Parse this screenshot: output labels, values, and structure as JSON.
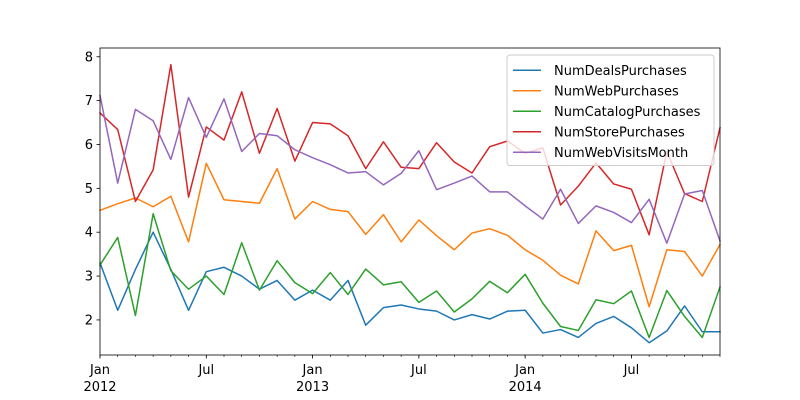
{
  "chart_data": {
    "type": "line",
    "title": "",
    "xlabel": "",
    "ylabel": "",
    "x_start": "2012-01",
    "x_end": "2014-12",
    "ylim": [
      1.2,
      8.2
    ],
    "y_ticks": [
      2,
      3,
      4,
      5,
      6,
      7,
      8
    ],
    "x_major_ticks": [
      {
        "month": "2012-01",
        "label": "Jan",
        "sublabel": "2012"
      },
      {
        "month": "2012-07",
        "label": "Jul",
        "sublabel": ""
      },
      {
        "month": "2013-01",
        "label": "Jan",
        "sublabel": "2013"
      },
      {
        "month": "2013-07",
        "label": "Jul",
        "sublabel": ""
      },
      {
        "month": "2014-01",
        "label": "Jan",
        "sublabel": "2014"
      },
      {
        "month": "2014-07",
        "label": "Jul",
        "sublabel": ""
      }
    ],
    "legend_position": "top-right",
    "grid": false,
    "series": [
      {
        "name": "NumDealsPurchases",
        "color": "#1f77b4",
        "values": [
          3.3,
          2.22,
          3.15,
          4.0,
          3.15,
          2.22,
          3.1,
          3.2,
          3.0,
          2.7,
          2.9,
          2.45,
          2.68,
          2.45,
          2.9,
          1.88,
          2.28,
          2.34,
          2.25,
          2.2,
          2.0,
          2.12,
          2.02,
          2.2,
          2.22,
          1.7,
          1.78,
          1.6,
          1.92,
          2.08,
          1.82,
          1.48,
          1.75,
          2.32,
          1.73,
          1.73
        ]
      },
      {
        "name": "NumWebPurchases",
        "color": "#ff7f0e",
        "values": [
          4.5,
          4.65,
          4.78,
          4.58,
          4.82,
          3.78,
          5.57,
          4.74,
          4.7,
          4.66,
          5.45,
          4.3,
          4.7,
          4.52,
          4.47,
          3.95,
          4.4,
          3.78,
          4.28,
          3.92,
          3.6,
          3.98,
          4.08,
          3.93,
          3.6,
          3.36,
          3.02,
          2.82,
          4.03,
          3.58,
          3.7,
          2.3,
          3.6,
          3.56,
          3.0,
          3.72
        ]
      },
      {
        "name": "NumCatalogPurchases",
        "color": "#2ca02c",
        "values": [
          3.25,
          3.88,
          2.1,
          4.42,
          3.12,
          2.7,
          3.0,
          2.58,
          3.76,
          2.68,
          3.35,
          2.85,
          2.6,
          3.08,
          2.58,
          3.16,
          2.8,
          2.87,
          2.4,
          2.66,
          2.18,
          2.48,
          2.88,
          2.62,
          3.04,
          2.38,
          1.85,
          1.76,
          2.46,
          2.37,
          2.66,
          1.6,
          2.67,
          2.08,
          1.6,
          2.75
        ]
      },
      {
        "name": "NumStorePurchases",
        "color": "#d62728",
        "values": [
          6.72,
          6.34,
          4.7,
          5.42,
          7.82,
          4.8,
          6.4,
          6.1,
          7.2,
          5.8,
          6.82,
          5.62,
          6.5,
          6.47,
          6.2,
          5.45,
          6.06,
          5.48,
          5.45,
          6.04,
          5.6,
          5.35,
          5.95,
          6.08,
          5.8,
          5.92,
          4.62,
          5.05,
          5.58,
          5.1,
          4.98,
          3.94,
          5.84,
          4.88,
          4.7,
          6.38
        ]
      },
      {
        "name": "NumWebVisitsMonth",
        "color": "#9467bd",
        "values": [
          7.12,
          5.12,
          6.8,
          6.54,
          5.66,
          7.07,
          6.16,
          7.04,
          5.84,
          6.25,
          6.2,
          5.88,
          5.7,
          5.54,
          5.35,
          5.38,
          5.08,
          5.34,
          5.86,
          4.97,
          5.12,
          5.28,
          4.92,
          4.92,
          4.6,
          4.3,
          4.98,
          4.2,
          4.6,
          4.45,
          4.22,
          4.75,
          3.75,
          4.87,
          4.95,
          3.8
        ]
      }
    ]
  }
}
